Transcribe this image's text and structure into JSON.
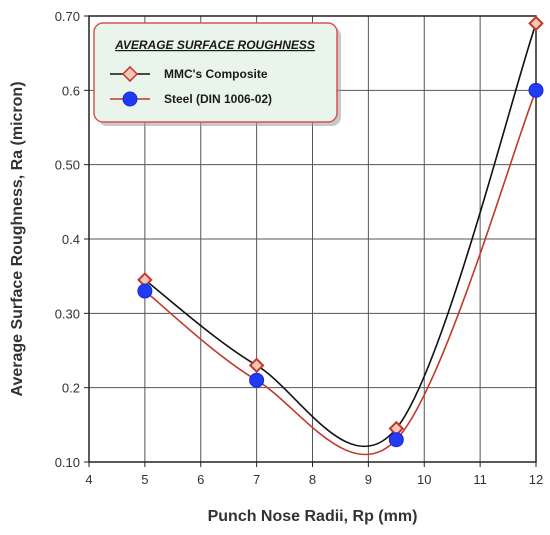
{
  "chart_data": {
    "type": "line",
    "title": "",
    "xlabel": "Punch Nose Radii, Rp (mm)",
    "ylabel": "Average Surface Roughness, Ra (micron)",
    "xlim": [
      4,
      12
    ],
    "ylim": [
      0.1,
      0.7
    ],
    "x_ticks": [
      4,
      5,
      6,
      7,
      8,
      9,
      10,
      11,
      12
    ],
    "x_tick_labels": [
      "4",
      "5",
      "6",
      "7",
      "8",
      "9",
      "10",
      "11",
      "12"
    ],
    "y_ticks": [
      0.1,
      0.2,
      0.3,
      0.4,
      0.5,
      0.6,
      0.7
    ],
    "y_tick_labels": [
      "0.10",
      "0.2",
      "0.30",
      "0.4",
      "0.50",
      "0.6",
      "0.70"
    ],
    "grid": true,
    "legend": {
      "title": "AVERAGE SURFACE ROUGHNESS",
      "placement": "top-left",
      "background": "#e9f5ea",
      "border": "#d9534f"
    },
    "series": [
      {
        "name": "MMC's Composite",
        "x": [
          5,
          7,
          9.5,
          12
        ],
        "y": [
          0.345,
          0.23,
          0.145,
          0.69
        ],
        "marker": "diamond",
        "line_color": "#111111",
        "marker_color": "#c0392b",
        "marker_fill": "#f6c7b6"
      },
      {
        "name": "Steel (DIN 1006-02)",
        "x": [
          5,
          7,
          9.5,
          12
        ],
        "y": [
          0.33,
          0.21,
          0.13,
          0.6
        ],
        "marker": "circle",
        "line_color": "#c0392b",
        "marker_color": "#1f23e6",
        "marker_fill": "#1f3cf0"
      }
    ]
  }
}
